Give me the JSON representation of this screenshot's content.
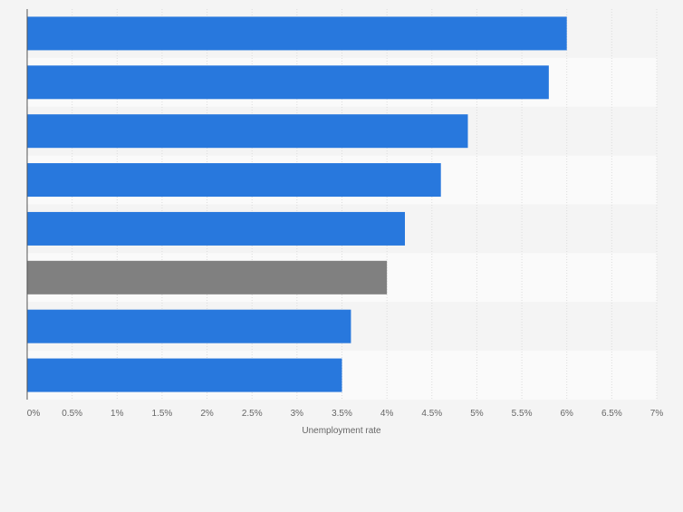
{
  "chart_data": {
    "type": "bar",
    "orientation": "horizontal",
    "xlabel": "Unemployment rate",
    "xlim": [
      0,
      7
    ],
    "x_ticks": [
      0,
      0.5,
      1,
      1.5,
      2,
      2.5,
      3,
      3.5,
      4,
      4.5,
      5,
      5.5,
      6,
      6.5,
      7
    ],
    "x_tick_labels": [
      "0%",
      "0.5%",
      "1%",
      "1.5%",
      "2%",
      "2.5%",
      "3%",
      "3.5%",
      "4%",
      "4.5%",
      "5%",
      "5.5%",
      "6%",
      "6.5%",
      "7%"
    ],
    "values": [
      6.0,
      5.8,
      4.9,
      4.6,
      4.2,
      4.0,
      3.6,
      3.5
    ],
    "bar_colors": [
      "#2878dd",
      "#2878dd",
      "#2878dd",
      "#2878dd",
      "#2878dd",
      "#808080",
      "#2878dd",
      "#2878dd"
    ],
    "grid": true,
    "legend": "none"
  },
  "colors": {
    "bar_default": "#2878dd",
    "bar_highlight": "#808080",
    "band_light": "#fafafa",
    "band_dark": "#f4f4f4",
    "grid": "#dcdcdc",
    "axis": "#555555",
    "tick_text": "#666666"
  }
}
